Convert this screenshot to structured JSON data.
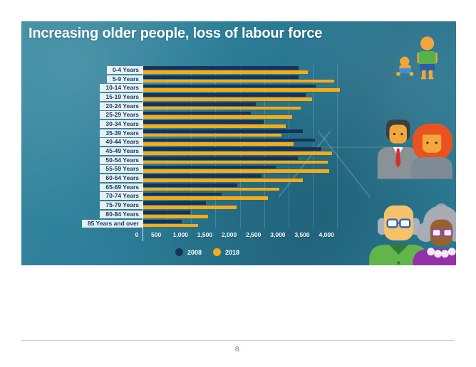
{
  "page": {
    "number_label": "8."
  },
  "slide": {
    "title": "Increasing older people, loss of labour force",
    "colors": {
      "background": "#2d7f9a",
      "bar_2008": "#14335c",
      "bar_2018": "#f7ac15",
      "label_band": "#ffffff",
      "label_text": "#1c3a60",
      "tick_text": "#ffffff"
    }
  },
  "chart_data": {
    "type": "bar",
    "orientation": "horizontal",
    "title": "Increasing older people, loss of labour force",
    "categories": [
      "0-4 Years",
      "5-9 Years",
      "10-14 Years",
      "15-19 Years",
      "20-24 Years",
      "25-29 Years",
      "30-34 Years",
      "35-39 Years",
      "40-44 Years",
      "45-49 Years",
      "50-54 Years",
      "55-59 Years",
      "60-64 Years",
      "65-69 Years",
      "70-74 Years",
      "75-79 Years",
      "80-84 Years",
      "85 Years and over"
    ],
    "series": [
      {
        "name": "2008",
        "color": "#14335c",
        "values": [
          3210,
          3200,
          3560,
          3350,
          2330,
          2220,
          2490,
          3300,
          3540,
          3670,
          3190,
          2740,
          2450,
          1950,
          1620,
          1310,
          980,
          810
        ]
      },
      {
        "name": "2018",
        "color": "#f7ac15",
        "values": [
          3390,
          3940,
          4050,
          3480,
          3250,
          3070,
          2950,
          2850,
          3110,
          3890,
          3810,
          3840,
          3290,
          2810,
          2580,
          1930,
          1340,
          1140
        ]
      }
    ],
    "x_ticks": [
      "0",
      "500",
      "1,000",
      "1,500",
      "2,000",
      "2,500",
      "3,000",
      "3,500",
      "4,000"
    ],
    "xlim": [
      0,
      4290
    ],
    "tick_interval": 500,
    "xlabel": "",
    "ylabel": "",
    "gridlines": true,
    "legend_position": "bottom"
  },
  "icons": {
    "top": "baby-and-child-icon",
    "middle": "adult-couple-icon",
    "bottom": "elderly-couple-icon"
  }
}
